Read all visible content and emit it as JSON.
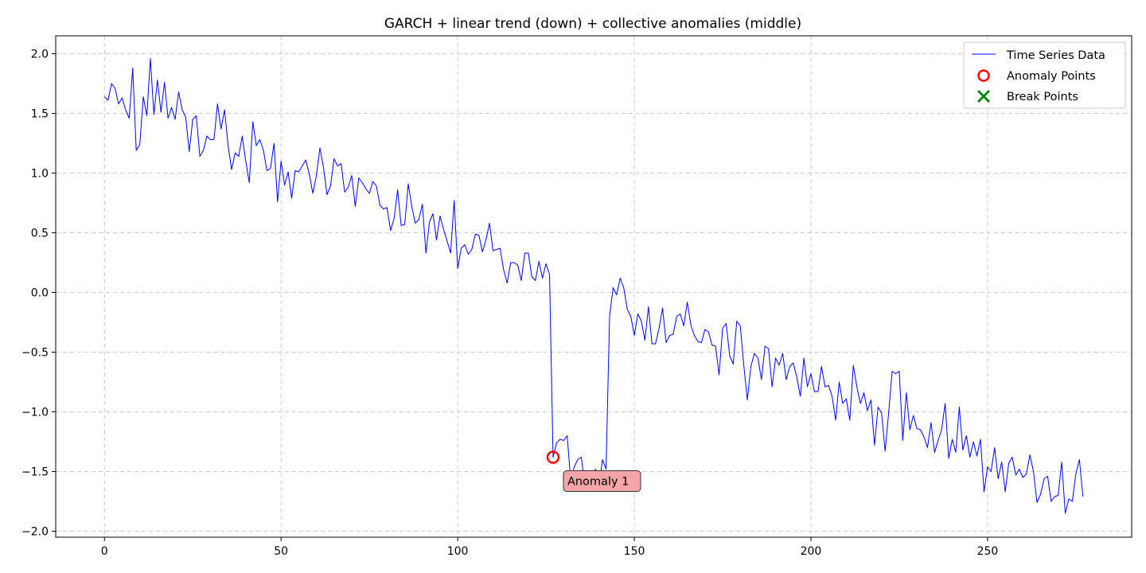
{
  "chart_data": {
    "type": "line",
    "title": "GARCH + linear trend (down) + collective anomalies (middle)",
    "xlabel": "",
    "ylabel": "",
    "xlim": [
      -13.8,
      290.8
    ],
    "ylim": [
      -2.05,
      2.15
    ],
    "xticks": [
      0,
      50,
      100,
      150,
      200,
      250
    ],
    "yticks": [
      2.0,
      1.5,
      1.0,
      0.5,
      0.0,
      -0.5,
      -1.0,
      -1.5,
      -2.0
    ],
    "ytick_labels": [
      "2.0",
      "1.5",
      "1.0",
      "0.5",
      "0.0",
      "−0.5",
      "−1.0",
      "−1.5",
      "−2.0"
    ],
    "grid": true,
    "legend_position": "top-right",
    "legend": [
      {
        "label": "Time Series Data",
        "marker": "line"
      },
      {
        "label": "Anomaly Points",
        "marker": "circle"
      },
      {
        "label": "Break Points",
        "marker": "x"
      }
    ],
    "colors": {
      "series": "#0000ff",
      "anomaly": "#ff0000",
      "break": "#008000",
      "grid": "#cccccc",
      "annotation_fill": "#f4a5a5"
    },
    "series": [
      {
        "name": "Time Series Data",
        "x_start": 0,
        "values": [
          1.64,
          1.61,
          1.75,
          1.71,
          1.58,
          1.63,
          1.53,
          1.46,
          1.88,
          1.19,
          1.24,
          1.64,
          1.48,
          1.96,
          1.49,
          1.78,
          1.51,
          1.76,
          1.46,
          1.55,
          1.45,
          1.68,
          1.53,
          1.47,
          1.18,
          1.45,
          1.48,
          1.14,
          1.19,
          1.31,
          1.28,
          1.28,
          1.58,
          1.37,
          1.53,
          1.23,
          1.03,
          1.17,
          1.14,
          1.31,
          1.1,
          0.92,
          1.43,
          1.23,
          1.28,
          1.19,
          1.02,
          1.04,
          1.25,
          0.76,
          1.1,
          0.9,
          1.01,
          0.79,
          1.02,
          1.01,
          1.06,
          1.11,
          0.99,
          0.83,
          0.98,
          1.21,
          1.05,
          0.82,
          0.89,
          1.12,
          1.06,
          1.08,
          0.84,
          0.88,
          0.98,
          0.72,
          0.96,
          0.92,
          0.87,
          0.83,
          0.93,
          0.89,
          0.73,
          0.7,
          0.71,
          0.52,
          0.62,
          0.86,
          0.56,
          0.57,
          0.91,
          0.72,
          0.58,
          0.61,
          0.74,
          0.33,
          0.59,
          0.66,
          0.44,
          0.64,
          0.53,
          0.43,
          0.33,
          0.77,
          0.2,
          0.37,
          0.4,
          0.32,
          0.36,
          0.49,
          0.48,
          0.34,
          0.44,
          0.58,
          0.35,
          0.36,
          0.37,
          0.19,
          0.08,
          0.25,
          0.25,
          0.23,
          0.1,
          0.33,
          0.33,
          0.13,
          0.1,
          0.26,
          0.12,
          0.24,
          0.15,
          -1.38,
          -1.26,
          -1.23,
          -1.24,
          -1.2,
          -1.58,
          -1.46,
          -1.4,
          -1.38,
          -1.62,
          -1.52,
          -1.66,
          -1.48,
          -1.62,
          -1.4,
          -1.48,
          -0.2,
          0.04,
          -0.02,
          0.12,
          0.04,
          -0.14,
          -0.2,
          -0.36,
          -0.18,
          -0.24,
          -0.4,
          -0.12,
          -0.43,
          -0.43,
          -0.3,
          -0.13,
          -0.42,
          -0.36,
          -0.35,
          -0.2,
          -0.18,
          -0.28,
          -0.08,
          -0.27,
          -0.36,
          -0.41,
          -0.42,
          -0.31,
          -0.33,
          -0.44,
          -0.45,
          -0.69,
          -0.3,
          -0.26,
          -0.53,
          -0.6,
          -0.24,
          -0.28,
          -0.61,
          -0.9,
          -0.62,
          -0.51,
          -0.55,
          -0.73,
          -0.45,
          -0.47,
          -0.79,
          -0.55,
          -0.61,
          -0.51,
          -0.73,
          -0.62,
          -0.59,
          -0.71,
          -0.87,
          -0.55,
          -0.79,
          -0.68,
          -0.83,
          -0.83,
          -0.62,
          -0.79,
          -0.78,
          -0.87,
          -1.07,
          -0.75,
          -0.93,
          -0.89,
          -1.07,
          -0.61,
          -0.79,
          -0.93,
          -0.84,
          -0.99,
          -0.9,
          -1.28,
          -0.96,
          -1.01,
          -1.33,
          -1.01,
          -0.66,
          -0.68,
          -0.66,
          -1.24,
          -0.84,
          -1.15,
          -1.03,
          -1.14,
          -1.15,
          -1.21,
          -1.3,
          -1.09,
          -1.34,
          -1.24,
          -1.15,
          -0.93,
          -1.39,
          -1.23,
          -1.34,
          -0.96,
          -1.32,
          -1.2,
          -1.38,
          -1.25,
          -1.37,
          -1.23,
          -1.67,
          -1.46,
          -1.5,
          -1.3,
          -1.56,
          -1.42,
          -1.67,
          -1.43,
          -1.38,
          -1.53,
          -1.48,
          -1.55,
          -1.52,
          -1.36,
          -1.5,
          -1.76,
          -1.69,
          -1.56,
          -1.54,
          -1.75,
          -1.71,
          -1.7,
          -1.42,
          -1.85,
          -1.73,
          -1.75,
          -1.52,
          -1.4,
          -1.71
        ]
      }
    ],
    "anomaly_points": [
      {
        "x": 127,
        "y": -1.38
      }
    ],
    "break_points": [],
    "annotations": [
      {
        "text": "Anomaly 1",
        "x": 127,
        "y": -1.38
      }
    ]
  }
}
